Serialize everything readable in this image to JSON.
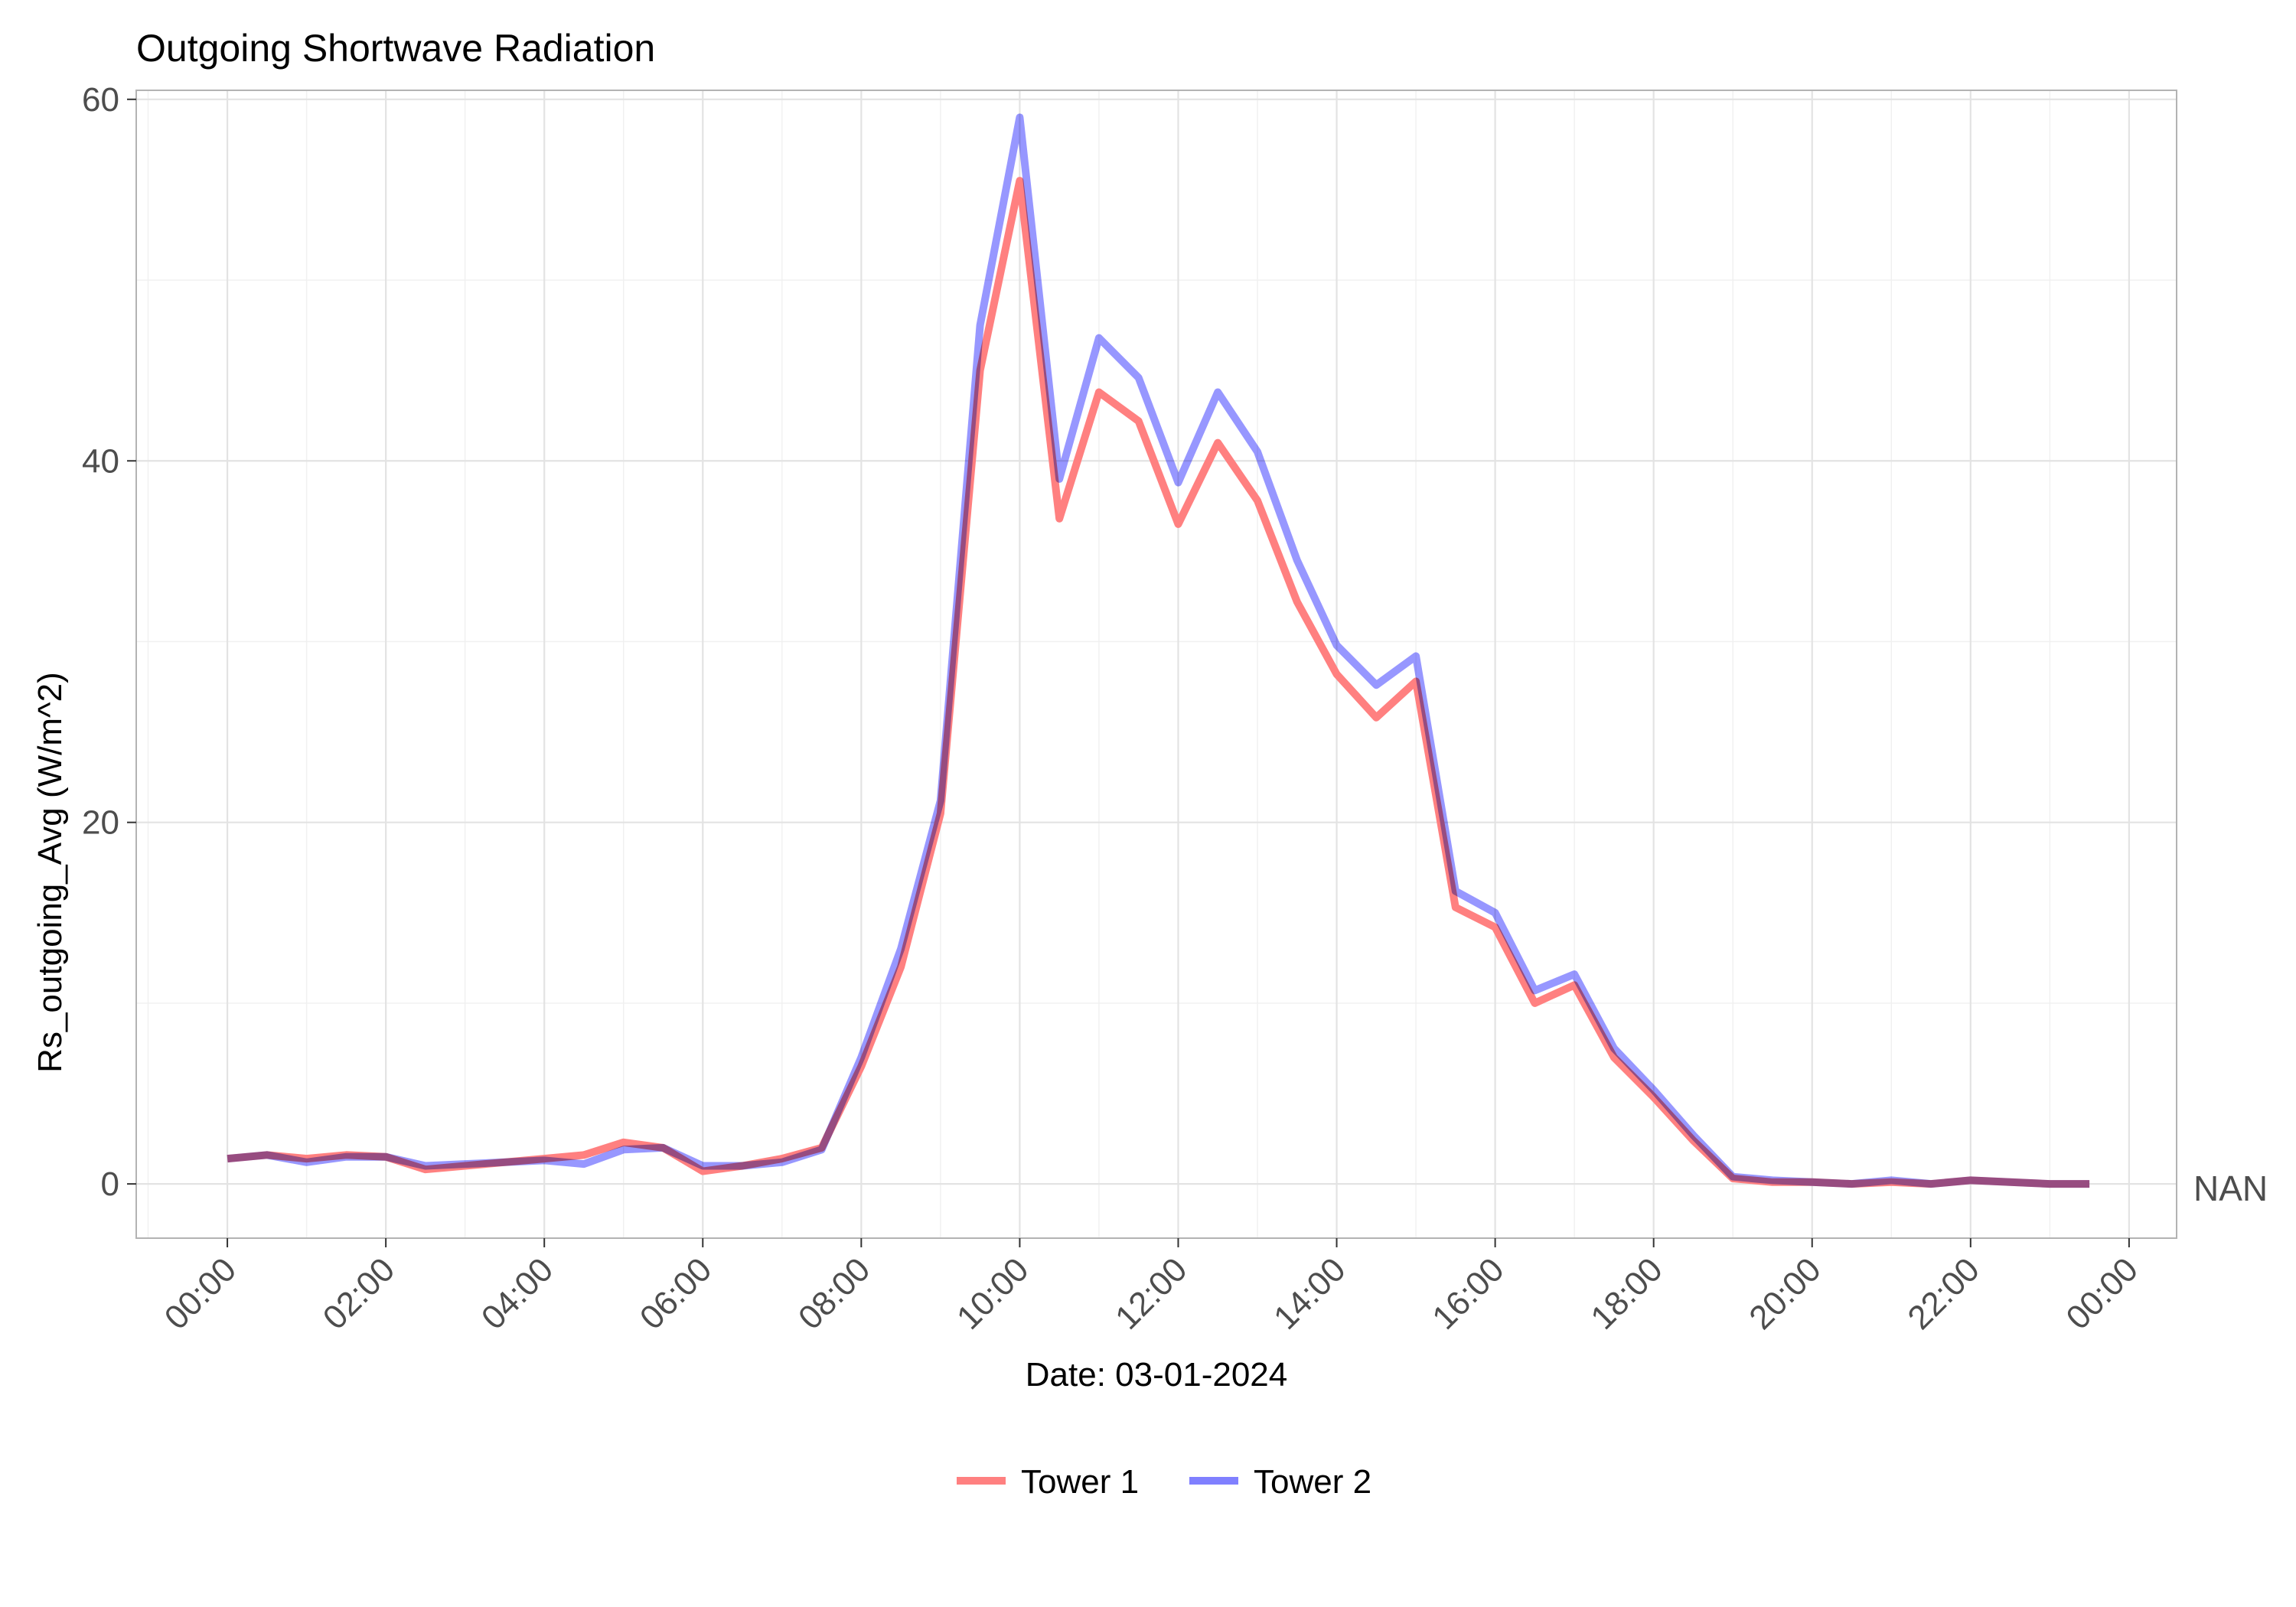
{
  "chart_data": {
    "type": "line",
    "title": "Outgoing Shortwave Radiation",
    "xlabel": "Date: 03-01-2024",
    "ylabel": "Rs_outgoing_Avg (W/m^2)",
    "secondary_y_label": "NAN",
    "ylim": [
      -3,
      60.5
    ],
    "yticks": [
      0,
      20,
      40,
      60
    ],
    "xlim_hours": [
      -1.15,
      24.6
    ],
    "xticks": [
      "00:00",
      "02:00",
      "04:00",
      "06:00",
      "08:00",
      "10:00",
      "12:00",
      "14:00",
      "16:00",
      "18:00",
      "20:00",
      "22:00",
      "00:00"
    ],
    "grid": true,
    "legend_position": "bottom",
    "x": [
      "00:00",
      "00:30",
      "01:00",
      "01:30",
      "02:00",
      "02:30",
      "03:00",
      "03:30",
      "04:00",
      "04:30",
      "05:00",
      "05:30",
      "06:00",
      "06:30",
      "07:00",
      "07:30",
      "08:00",
      "08:30",
      "09:00",
      "09:30",
      "10:00",
      "10:30",
      "11:00",
      "11:30",
      "12:00",
      "12:30",
      "13:00",
      "13:30",
      "14:00",
      "14:30",
      "15:00",
      "15:30",
      "16:00",
      "16:30",
      "17:00",
      "17:30",
      "18:00",
      "18:30",
      "19:00",
      "19:30",
      "20:00",
      "20:30",
      "21:00",
      "21:30",
      "22:00",
      "22:30",
      "23:00",
      "23:30"
    ],
    "series": [
      {
        "name": "Tower 1",
        "color": "#ff8080",
        "values": [
          1.4,
          1.6,
          1.4,
          1.6,
          1.5,
          0.8,
          1.0,
          1.2,
          1.4,
          1.6,
          2.3,
          2.0,
          0.7,
          1.0,
          1.4,
          2.0,
          6.5,
          12.0,
          20.5,
          45.0,
          55.5,
          36.8,
          43.8,
          42.2,
          36.5,
          41.0,
          37.8,
          32.2,
          28.2,
          25.8,
          27.8,
          15.3,
          14.2,
          10.0,
          11.0,
          7.0,
          4.8,
          2.4,
          0.3,
          0.1,
          0.1,
          0.0,
          0.1,
          0.0,
          0.2,
          0.1,
          0.0,
          0.0
        ]
      },
      {
        "name": "Tower 2",
        "color": "#8080ff",
        "values": [
          1.4,
          1.6,
          1.2,
          1.5,
          1.5,
          1.0,
          1.1,
          1.2,
          1.3,
          1.1,
          1.9,
          2.0,
          1.0,
          1.0,
          1.2,
          1.9,
          7.0,
          13.0,
          21.2,
          47.5,
          59.0,
          39.0,
          46.8,
          44.6,
          38.8,
          43.8,
          40.5,
          34.5,
          29.8,
          27.6,
          29.2,
          16.2,
          15.0,
          10.7,
          11.6,
          7.5,
          5.2,
          2.7,
          0.4,
          0.2,
          0.1,
          0.0,
          0.2,
          0.0,
          0.2,
          0.1,
          0.0,
          0.0
        ]
      }
    ]
  }
}
